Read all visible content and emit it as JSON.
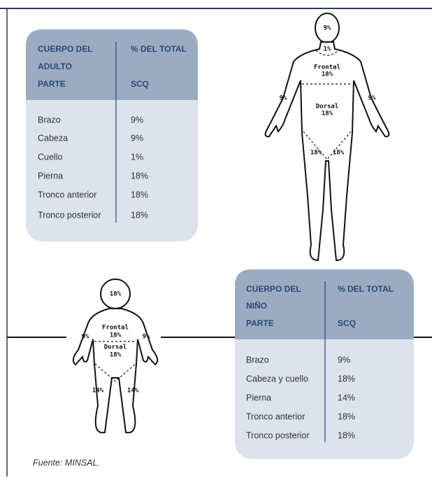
{
  "adult_table": {
    "column_1": [
      "CUERPO DEL",
      "ADULTO",
      "PARTE"
    ],
    "column_2": [
      "% DEL TOTAL",
      "SCQ"
    ],
    "rows": [
      [
        "Brazo",
        "9%"
      ],
      [
        "Cabeza",
        "9%"
      ],
      [
        "Cuello",
        "1%"
      ],
      [
        "Pierna",
        "18%"
      ],
      [
        "Tronco anterior",
        "18%"
      ],
      [
        "Tronco posterior",
        "18%"
      ]
    ]
  },
  "adult_figure": {
    "labels": [
      "9%",
      "1%",
      "Frontal",
      "18%",
      "9%",
      "9%",
      "Dorsal",
      "18%",
      "18%",
      "18%"
    ]
  },
  "child_table": {
    "column_1": [
      "CUERPO DEL",
      "NIÑO",
      "PARTE"
    ],
    "column_2": [
      "% DEL TOTAL",
      "SCQ"
    ],
    "rows": [
      [
        "Brazo",
        "9%"
      ],
      [
        "Cabeza y cuello",
        "18%"
      ],
      [
        "Pierna",
        "14%"
      ],
      [
        "Tronco anterior",
        "18%"
      ],
      [
        "Tronco posterior",
        "18%"
      ]
    ]
  },
  "child_figure": {
    "labels": [
      "18%",
      "9%",
      "Frontal",
      "18%",
      "9%",
      "Dorsal",
      "18%",
      "14%",
      "14%"
    ]
  },
  "source": "Fuente: MINSAL."
}
